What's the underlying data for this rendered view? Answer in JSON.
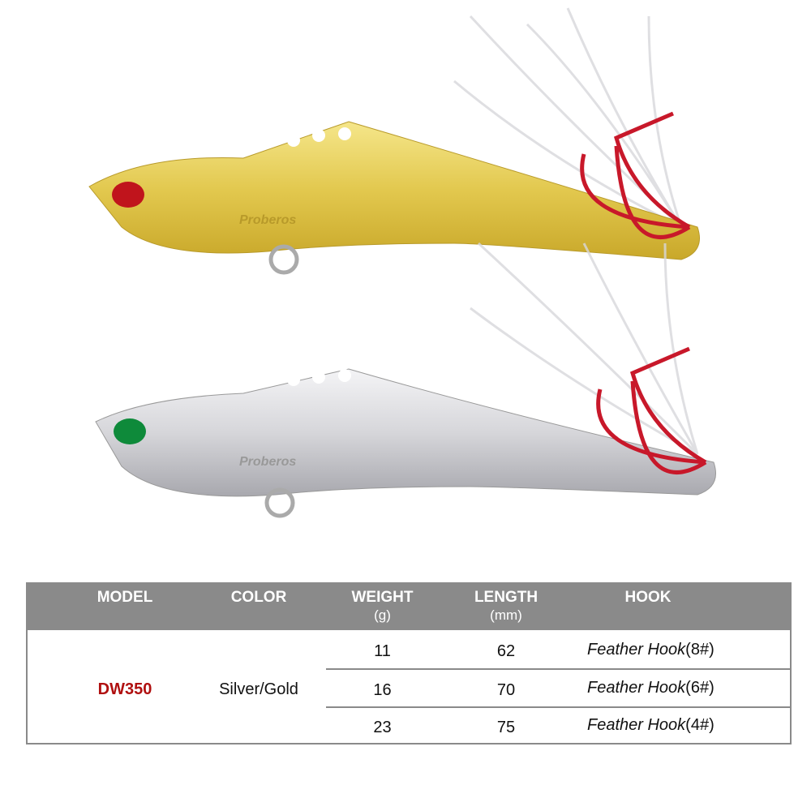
{
  "product": {
    "logo_text": "Proberos",
    "lures": [
      {
        "color": "Gold",
        "eye_color": "#c0141c",
        "body_color": "#e6cf5a"
      },
      {
        "color": "Silver",
        "eye_color": "#0e8a3a",
        "body_color": "#d8d8d8"
      }
    ],
    "hook_color": "#c8182a"
  },
  "table": {
    "headers": [
      {
        "label": "MODEL",
        "unit": ""
      },
      {
        "label": "COLOR",
        "unit": ""
      },
      {
        "label": "WEIGHT",
        "unit": "(g)"
      },
      {
        "label": "LENGTH",
        "unit": "(mm)"
      },
      {
        "label": "HOOK",
        "unit": ""
      }
    ],
    "model": "DW350",
    "color": "Silver/Gold",
    "rows": [
      {
        "weight": "11",
        "length": "62",
        "hook": "Feather Hook",
        "size": "(8#)"
      },
      {
        "weight": "16",
        "length": "70",
        "hook": "Feather Hook",
        "size": "(6#)"
      },
      {
        "weight": "23",
        "length": "75",
        "hook": "Feather Hook",
        "size": "(4#)"
      }
    ],
    "header_color": "#8a8a8a",
    "model_color": "#b01010"
  }
}
